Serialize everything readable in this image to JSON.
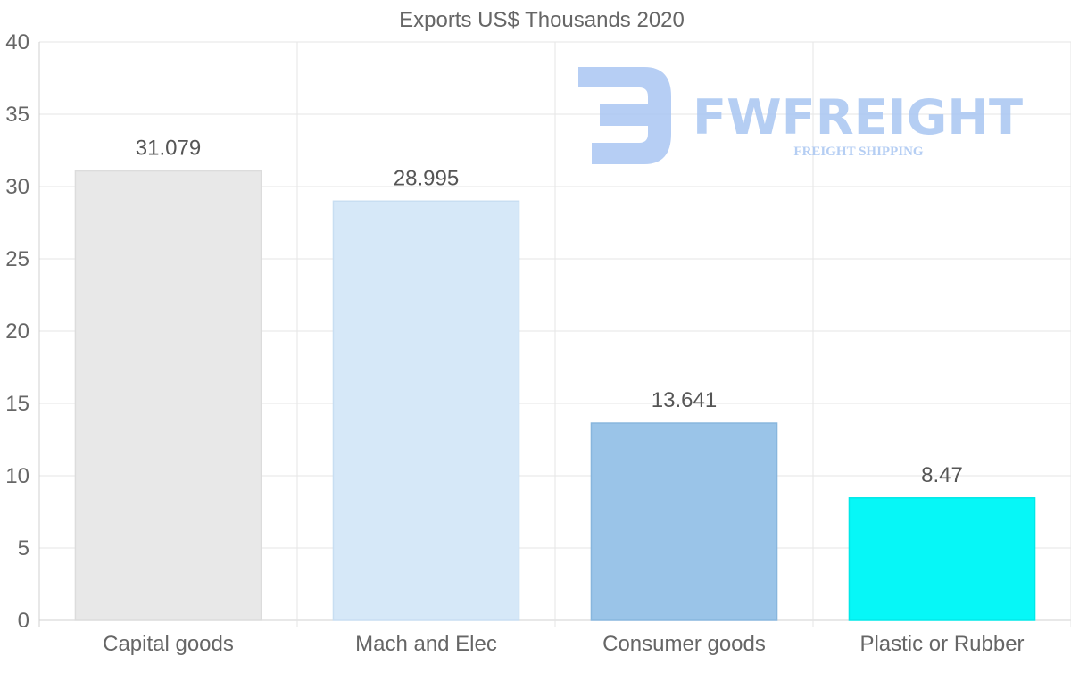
{
  "chart_data": {
    "type": "bar",
    "title": "Exports US$ Thousands 2020",
    "categories": [
      "Capital goods",
      "Mach and Elec",
      "Consumer goods",
      "Plastic or Rubber"
    ],
    "values": [
      31.079,
      28.995,
      13.641,
      8.47
    ],
    "value_labels": [
      "31.079",
      "28.995",
      "13.641",
      "8.47"
    ],
    "colors": [
      "#e8e8e8",
      "#d6e8f8",
      "#9ac4e8",
      "#06f7f7"
    ],
    "border_colors": [
      "#dcdcdc",
      "#c8def2",
      "#88b6dd",
      "#00e8e8"
    ],
    "ylim": [
      0,
      40
    ],
    "yticks": [
      0,
      5,
      10,
      15,
      20,
      25,
      30,
      35,
      40
    ],
    "xlabel": "",
    "ylabel": "",
    "grid": true,
    "legend": "none"
  },
  "watermark": {
    "brand": "FWFREIGHT",
    "tagline": "FREIGHT SHIPPING",
    "color": "#a9c6f2"
  }
}
